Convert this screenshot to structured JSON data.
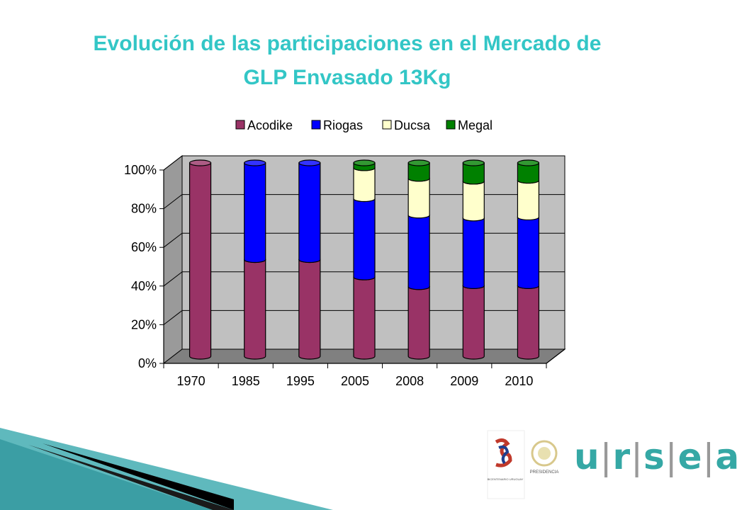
{
  "title": {
    "line1": "Evolución de las participaciones en el Mercado de",
    "line2": "GLP Envasado 13Kg"
  },
  "chart_data": {
    "type": "bar",
    "stacked": true,
    "three_d": true,
    "categories": [
      "1970",
      "1985",
      "1995",
      "2005",
      "2008",
      "2009",
      "2010"
    ],
    "series": [
      {
        "name": "Acodike",
        "color": "#993366",
        "values": [
          100,
          50,
          50,
          41,
          36,
          36.5,
          36.5
        ]
      },
      {
        "name": "Riogas",
        "color": "#0000ff",
        "values": [
          0,
          50,
          50,
          40.5,
          37,
          35,
          35.5
        ]
      },
      {
        "name": "Ducsa",
        "color": "#ffffcc",
        "values": [
          0,
          0,
          0,
          16,
          19,
          19,
          19
        ]
      },
      {
        "name": "Megal",
        "color": "#008000",
        "values": [
          0,
          0,
          0,
          2.5,
          8,
          9.5,
          9
        ]
      }
    ],
    "y_ticks": [
      "0%",
      "20%",
      "40%",
      "60%",
      "80%",
      "100%"
    ],
    "ylim": [
      0,
      100
    ],
    "grid": true,
    "legend_position": "top"
  },
  "logos": {
    "bicentenario_text": "BICENTENARIO URUGUAY",
    "presidencia_text": "PRESIDENCIA",
    "ursea": [
      "u",
      "r",
      "s",
      "e",
      "a"
    ]
  },
  "colors": {
    "title": "#33c6c6",
    "plot_back": "#c0c0c0",
    "plot_floor": "#808080",
    "accent_teal": "#35a8a5"
  }
}
